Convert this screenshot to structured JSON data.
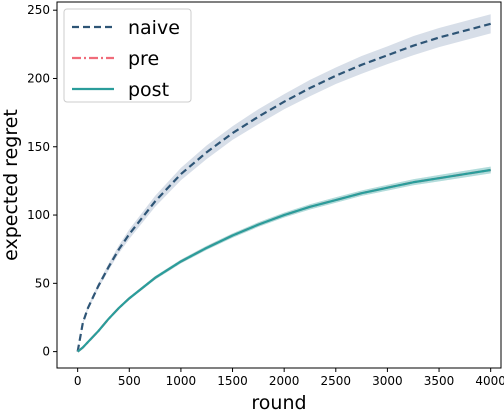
{
  "chart_data": {
    "type": "line",
    "xlabel": "round",
    "ylabel": "expected regret",
    "xlim": [
      -200,
      4100
    ],
    "ylim": [
      -12,
      256
    ],
    "xticks": [
      0,
      500,
      1000,
      1500,
      2000,
      2500,
      3000,
      3500,
      4000
    ],
    "yticks": [
      0,
      50,
      100,
      150,
      200,
      250
    ],
    "grid": false,
    "legend_position": "top-left",
    "x": [
      0,
      50,
      100,
      200,
      300,
      400,
      500,
      750,
      1000,
      1250,
      1500,
      1750,
      2000,
      2250,
      2500,
      2750,
      3000,
      3250,
      3500,
      3750,
      4000
    ],
    "series": [
      {
        "name": "naive",
        "color": "#2e5576",
        "style": "dashed",
        "band_color": "#b7c2d6",
        "values": [
          0,
          21,
          32,
          48,
          62,
          75,
          86,
          110,
          130,
          146,
          160,
          172,
          183,
          193,
          202,
          210,
          217,
          224,
          230,
          235,
          240
        ],
        "band": [
          0,
          1,
          1.5,
          2,
          2.5,
          3,
          3.5,
          4,
          4.5,
          5,
          5,
          5.5,
          5.5,
          6,
          6,
          6.5,
          6.5,
          7,
          7,
          7,
          7
        ]
      },
      {
        "name": "pre",
        "color": "#f06c7a",
        "style": "dashdot",
        "band_color": "#9fd4d1",
        "values": [
          0,
          3,
          7,
          15,
          24,
          32,
          39,
          54,
          66,
          76,
          85,
          93,
          100,
          106,
          111,
          116,
          120,
          124,
          127,
          130,
          133
        ],
        "band": [
          0,
          0.3,
          0.5,
          0.7,
          0.9,
          1,
          1.1,
          1.3,
          1.4,
          1.5,
          1.6,
          1.7,
          1.8,
          1.9,
          2,
          2,
          2.1,
          2.2,
          2.3,
          2.4,
          2.5
        ]
      },
      {
        "name": "post",
        "color": "#2a9d9b",
        "style": "solid",
        "band_color": "#9fd4d1",
        "values": [
          0,
          3,
          7,
          15,
          24,
          32,
          39,
          54,
          66,
          76,
          85,
          93,
          100,
          106,
          111,
          116,
          120,
          124,
          127,
          130,
          133
        ],
        "band": [
          0,
          0.3,
          0.5,
          0.7,
          0.9,
          1,
          1.1,
          1.3,
          1.4,
          1.5,
          1.6,
          1.7,
          1.8,
          1.9,
          2,
          2,
          2.1,
          2.2,
          2.3,
          2.4,
          2.5
        ]
      }
    ]
  }
}
